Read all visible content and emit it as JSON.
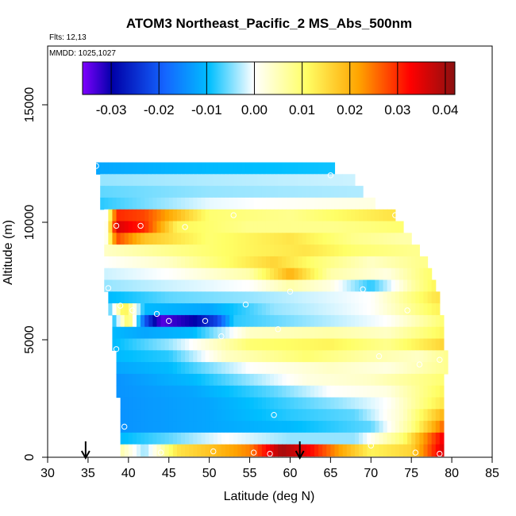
{
  "chart_data": {
    "type": "heatmap",
    "title": "ATOM3 Northeast_Pacific_2 MS_Abs_500nm",
    "subtitle_flights": "Flts: 12,13",
    "subtitle_dates": "MMDD: 1025,1027",
    "xlabel": "Latitude (deg N)",
    "ylabel": "Altitude (m)",
    "xlim": [
      30,
      85
    ],
    "ylim": [
      0,
      17500
    ],
    "x_ticks": [
      30,
      35,
      40,
      45,
      50,
      55,
      60,
      65,
      70,
      75,
      80,
      85
    ],
    "y_ticks": [
      0,
      5000,
      10000,
      15000
    ],
    "x_tick_labels": [
      "30",
      "35",
      "40",
      "45",
      "50",
      "55",
      "60",
      "65",
      "70",
      "75",
      "80",
      "85"
    ],
    "y_tick_labels": [
      "0",
      "5000",
      "10000",
      "15000"
    ],
    "colorbar": {
      "range": [
        -0.036,
        0.042
      ],
      "ticks": [
        -0.03,
        -0.02,
        -0.01,
        0.0,
        0.01,
        0.02,
        0.03,
        0.04
      ],
      "tick_labels": [
        "-0.03",
        "-0.02",
        "-0.01",
        "0.00",
        "0.01",
        "0.02",
        "0.03",
        "0.04"
      ],
      "colors": [
        "#7f00ff",
        "#0000a8",
        "#1464ff",
        "#00bfff",
        "#ffffff",
        "#ffff66",
        "#ffa500",
        "#ff0000",
        "#8b1010"
      ]
    },
    "rows": [
      {
        "alt": 12300,
        "lat_min": 36.0,
        "lat_max": 65.5,
        "anchors": [
          [
            36,
            -0.012
          ],
          [
            50,
            -0.01
          ],
          [
            65,
            -0.009
          ]
        ]
      },
      {
        "alt": 11800,
        "lat_min": 36.5,
        "lat_max": 68.0,
        "anchors": [
          [
            36.5,
            -0.004
          ],
          [
            50,
            -0.003
          ],
          [
            68,
            -0.002
          ]
        ]
      },
      {
        "alt": 11300,
        "lat_min": 36.5,
        "lat_max": 69.0,
        "anchors": [
          [
            36.5,
            -0.006
          ],
          [
            50,
            -0.004
          ],
          [
            69,
            -0.003
          ]
        ]
      },
      {
        "alt": 10800,
        "lat_min": 36.5,
        "lat_max": 70.5,
        "anchors": [
          [
            36.5,
            -0.008
          ],
          [
            50,
            -0.001
          ],
          [
            70,
            0.002
          ]
        ]
      },
      {
        "alt": 10300,
        "lat_min": 37.0,
        "lat_max": 73.0,
        "anchors": [
          [
            37,
            -0.006
          ],
          [
            38.5,
            0.03
          ],
          [
            42,
            0.028
          ],
          [
            50,
            0.01
          ],
          [
            60,
            0.008
          ],
          [
            72,
            0.014
          ]
        ]
      },
      {
        "alt": 9800,
        "lat_min": 37.0,
        "lat_max": 74.0,
        "anchors": [
          [
            37,
            -0.006
          ],
          [
            38.5,
            0.036
          ],
          [
            42,
            0.03
          ],
          [
            46,
            0.012
          ],
          [
            55,
            0.008
          ],
          [
            65,
            0.008
          ],
          [
            73,
            0.01
          ]
        ]
      },
      {
        "alt": 9300,
        "lat_min": 37.0,
        "lat_max": 75.0,
        "anchors": [
          [
            37,
            -0.004
          ],
          [
            38.5,
            0.028
          ],
          [
            42,
            0.018
          ],
          [
            50,
            0.01
          ],
          [
            60,
            0.014
          ],
          [
            68,
            0.008
          ],
          [
            74,
            0.006
          ]
        ]
      },
      {
        "alt": 8800,
        "lat_min": 37.0,
        "lat_max": 76.0,
        "anchors": [
          [
            37,
            0.004
          ],
          [
            45,
            0.008
          ],
          [
            55,
            0.012
          ],
          [
            62,
            0.014
          ],
          [
            68,
            0.01
          ],
          [
            75,
            0.008
          ]
        ]
      },
      {
        "alt": 8300,
        "lat_min": 37.0,
        "lat_max": 77.0,
        "anchors": [
          [
            37,
            0.0
          ],
          [
            45,
            0.004
          ],
          [
            58,
            0.016
          ],
          [
            63,
            0.01
          ],
          [
            70,
            0.004
          ],
          [
            76,
            0.008
          ]
        ]
      },
      {
        "alt": 7800,
        "lat_min": 37.0,
        "lat_max": 77.5,
        "anchors": [
          [
            37,
            -0.002
          ],
          [
            45,
            0.0
          ],
          [
            55,
            0.006
          ],
          [
            60,
            0.02
          ],
          [
            65,
            0.006
          ],
          [
            72,
            0.002
          ],
          [
            77,
            0.01
          ]
        ]
      },
      {
        "alt": 7300,
        "lat_min": 37.0,
        "lat_max": 78.0,
        "anchors": [
          [
            37,
            -0.004
          ],
          [
            45,
            -0.002
          ],
          [
            55,
            0.0
          ],
          [
            60,
            0.006
          ],
          [
            65,
            0.002
          ],
          [
            70,
            -0.008
          ],
          [
            75,
            0.006
          ],
          [
            78,
            0.012
          ]
        ]
      },
      {
        "alt": 6800,
        "lat_min": 37.5,
        "lat_max": 78.5,
        "anchors": [
          [
            37.5,
            -0.01
          ],
          [
            45,
            -0.006
          ],
          [
            55,
            -0.004
          ],
          [
            62,
            -0.002
          ],
          [
            70,
            0.0
          ],
          [
            78,
            0.014
          ]
        ]
      },
      {
        "alt": 6300,
        "lat_min": 37.5,
        "lat_max": 78.5,
        "anchors": [
          [
            37.5,
            -0.008
          ],
          [
            39.5,
            0.014
          ],
          [
            42,
            -0.01
          ],
          [
            50,
            -0.012
          ],
          [
            58,
            -0.004
          ],
          [
            70,
            0.0
          ],
          [
            78,
            0.012
          ]
        ]
      },
      {
        "alt": 5800,
        "lat_min": 38.0,
        "lat_max": 79.0,
        "anchors": [
          [
            38,
            -0.01
          ],
          [
            40,
            0.012
          ],
          [
            42,
            -0.02
          ],
          [
            44,
            -0.034
          ],
          [
            48,
            -0.03
          ],
          [
            51,
            -0.022
          ],
          [
            53,
            -0.008
          ],
          [
            62,
            -0.004
          ],
          [
            72,
            0.0
          ],
          [
            79,
            0.01
          ]
        ]
      },
      {
        "alt": 5300,
        "lat_min": 38.0,
        "lat_max": 79.0,
        "anchors": [
          [
            38,
            -0.01
          ],
          [
            42,
            -0.012
          ],
          [
            48,
            -0.01
          ],
          [
            55,
            0.004
          ],
          [
            65,
            0.006
          ],
          [
            72,
            0.004
          ],
          [
            79,
            0.012
          ]
        ]
      },
      {
        "alt": 4800,
        "lat_min": 38.0,
        "lat_max": 79.0,
        "anchors": [
          [
            38,
            -0.01
          ],
          [
            45,
            -0.004
          ],
          [
            55,
            0.01
          ],
          [
            65,
            0.012
          ],
          [
            72,
            0.008
          ],
          [
            79,
            0.016
          ]
        ]
      },
      {
        "alt": 4300,
        "lat_min": 38.5,
        "lat_max": 79.5,
        "anchors": [
          [
            38.5,
            -0.01
          ],
          [
            45,
            -0.008
          ],
          [
            52,
            0.004
          ],
          [
            62,
            0.01
          ],
          [
            70,
            0.006
          ],
          [
            76,
            0.004
          ],
          [
            79.5,
            0.008
          ]
        ]
      },
      {
        "alt": 3800,
        "lat_min": 38.5,
        "lat_max": 79.5,
        "anchors": [
          [
            38.5,
            -0.012
          ],
          [
            45,
            -0.01
          ],
          [
            55,
            0.0
          ],
          [
            65,
            0.004
          ],
          [
            72,
            0.002
          ],
          [
            79.5,
            0.008
          ]
        ]
      },
      {
        "alt": 3300,
        "lat_min": 38.5,
        "lat_max": 79.0,
        "anchors": [
          [
            38.5,
            -0.014
          ],
          [
            48,
            -0.01
          ],
          [
            55,
            -0.004
          ],
          [
            62,
            0.002
          ],
          [
            70,
            0.004
          ],
          [
            79,
            0.01
          ]
        ]
      },
      {
        "alt": 2800,
        "lat_min": 38.5,
        "lat_max": 79.0,
        "anchors": [
          [
            38.5,
            -0.014
          ],
          [
            48,
            -0.012
          ],
          [
            58,
            -0.006
          ],
          [
            65,
            0.0
          ],
          [
            72,
            0.002
          ],
          [
            79,
            0.012
          ]
        ]
      },
      {
        "alt": 2300,
        "lat_min": 39.0,
        "lat_max": 79.0,
        "anchors": [
          [
            39,
            -0.014
          ],
          [
            50,
            -0.012
          ],
          [
            58,
            -0.008
          ],
          [
            66,
            -0.004
          ],
          [
            72,
            0.0
          ],
          [
            79,
            0.014
          ]
        ]
      },
      {
        "alt": 1800,
        "lat_min": 39.0,
        "lat_max": 79.0,
        "anchors": [
          [
            39,
            -0.014
          ],
          [
            50,
            -0.012
          ],
          [
            60,
            -0.008
          ],
          [
            68,
            -0.006
          ],
          [
            74,
            0.004
          ],
          [
            79,
            0.02
          ]
        ]
      },
      {
        "alt": 1300,
        "lat_min": 39.0,
        "lat_max": 79.0,
        "anchors": [
          [
            39,
            -0.014
          ],
          [
            50,
            -0.012
          ],
          [
            60,
            -0.01
          ],
          [
            70,
            -0.006
          ],
          [
            75,
            0.008
          ],
          [
            79,
            0.026
          ]
        ]
      },
      {
        "alt": 800,
        "lat_min": 39.0,
        "lat_max": 79.0,
        "anchors": [
          [
            39,
            -0.01
          ],
          [
            45,
            -0.006
          ],
          [
            52,
            0.0
          ],
          [
            60,
            -0.004
          ],
          [
            68,
            -0.004
          ],
          [
            74,
            0.01
          ],
          [
            79,
            0.034
          ]
        ]
      },
      {
        "alt": 300,
        "lat_min": 39.0,
        "lat_max": 79.0,
        "anchors": [
          [
            39,
            0.006
          ],
          [
            42,
            -0.004
          ],
          [
            46,
            0.014
          ],
          [
            50,
            0.018
          ],
          [
            55,
            0.024
          ],
          [
            59,
            0.04
          ],
          [
            62,
            0.034
          ],
          [
            66,
            0.022
          ],
          [
            70,
            0.012
          ],
          [
            75,
            0.016
          ],
          [
            79,
            0.036
          ]
        ]
      }
    ],
    "sample_points": [
      [
        36.0,
        12400
      ],
      [
        65.0,
        12000
      ],
      [
        53.0,
        10300
      ],
      [
        73.0,
        10300
      ],
      [
        38.5,
        9850
      ],
      [
        41.5,
        9850
      ],
      [
        47.0,
        9800
      ],
      [
        37.5,
        7200
      ],
      [
        60.0,
        7050
      ],
      [
        69.0,
        7150
      ],
      [
        39.0,
        6450
      ],
      [
        40.5,
        6250
      ],
      [
        43.5,
        6100
      ],
      [
        45.0,
        5800
      ],
      [
        49.5,
        5800
      ],
      [
        54.5,
        6500
      ],
      [
        74.5,
        6250
      ],
      [
        58.5,
        5450
      ],
      [
        51.5,
        5150
      ],
      [
        38.5,
        4600
      ],
      [
        71.0,
        4300
      ],
      [
        76.0,
        3950
      ],
      [
        78.5,
        4150
      ],
      [
        58.0,
        1800
      ],
      [
        39.5,
        1300
      ],
      [
        44.0,
        200
      ],
      [
        50.5,
        250
      ],
      [
        55.5,
        200
      ],
      [
        57.5,
        150
      ],
      [
        70.0,
        500
      ],
      [
        75.5,
        200
      ],
      [
        78.5,
        150
      ]
    ],
    "flight_markers": [
      34.7,
      61.2
    ]
  }
}
